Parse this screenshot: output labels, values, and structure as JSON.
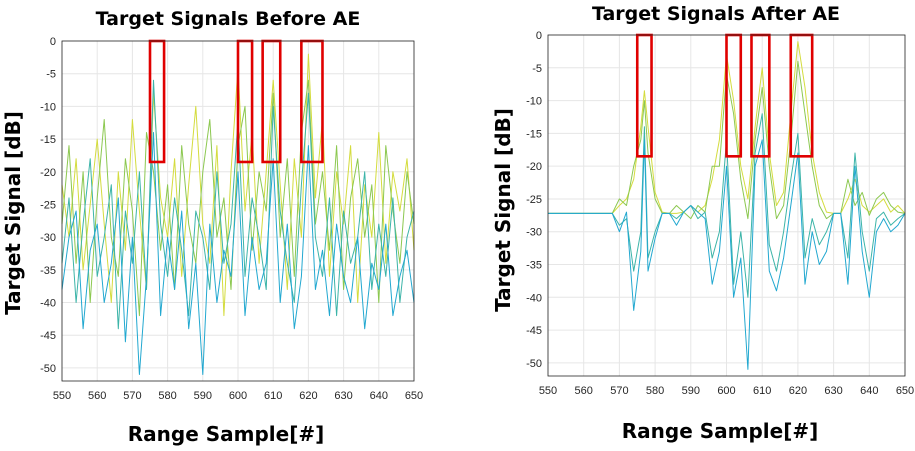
{
  "chart_data": [
    {
      "type": "line",
      "title": "Target Signals Before AE",
      "xlabel": "Range Sample[#]",
      "ylabel": "Target Signal [dB]",
      "xlim": [
        550,
        650
      ],
      "ylim": [
        -52,
        0
      ],
      "xticks": [
        "550",
        "560",
        "570",
        "580",
        "590",
        "600",
        "610",
        "620",
        "630",
        "640",
        "650"
      ],
      "yticks": [
        "0",
        "-5",
        "-10",
        "-15",
        "-20",
        "-25",
        "-30",
        "-35",
        "-40",
        "-45",
        "-50"
      ],
      "grid": true,
      "colors": [
        "#d4dc3e",
        "#8cc850",
        "#3cb4a8",
        "#22a8d0"
      ],
      "highlight_boxes": [
        {
          "x": [
            575,
            579
          ],
          "y": [
            -18.5,
            0
          ]
        },
        {
          "x": [
            600,
            604
          ],
          "y": [
            -18.5,
            0
          ]
        },
        {
          "x": [
            607,
            612
          ],
          "y": [
            -18.5,
            0
          ]
        },
        {
          "x": [
            618,
            624
          ],
          "y": [
            -18.5,
            0
          ]
        }
      ],
      "series": [
        {
          "x": [
            550,
            552,
            554,
            556,
            558,
            560,
            562,
            564,
            566,
            568,
            570,
            572,
            574,
            576,
            578,
            580,
            582,
            584,
            586,
            588,
            590,
            592,
            594,
            596,
            598,
            600,
            602,
            604,
            606,
            608,
            610,
            612,
            614,
            616,
            618,
            620,
            622,
            624,
            626,
            628,
            630,
            632,
            634,
            636,
            638,
            640,
            642,
            644,
            646,
            648,
            650
          ],
          "values": [
            -22,
            -30,
            -18,
            -35,
            -25,
            -15,
            -28,
            -40,
            -20,
            -32,
            -12,
            -26,
            -38,
            -8,
            -24,
            -30,
            -18,
            -36,
            -22,
            -10,
            -28,
            -34,
            -16,
            -42,
            -20,
            -4,
            -26,
            -14,
            -34,
            -20,
            -6,
            -22,
            -38,
            -18,
            -30,
            -2,
            -24,
            -12,
            -36,
            -20,
            -28,
            -16,
            -40,
            -22,
            -30,
            -14,
            -34,
            -20,
            -26,
            -18,
            -32
          ]
        },
        {
          "x": [
            550,
            552,
            554,
            556,
            558,
            560,
            562,
            564,
            566,
            568,
            570,
            572,
            574,
            576,
            578,
            580,
            582,
            584,
            586,
            588,
            590,
            592,
            594,
            596,
            598,
            600,
            602,
            604,
            606,
            608,
            610,
            612,
            614,
            616,
            618,
            620,
            622,
            624,
            626,
            628,
            630,
            632,
            634,
            636,
            638,
            640,
            642,
            644,
            646,
            648,
            650
          ],
          "values": [
            -28,
            -16,
            -34,
            -20,
            -40,
            -24,
            -12,
            -30,
            -36,
            -18,
            -26,
            -42,
            -14,
            -20,
            -32,
            -22,
            -38,
            -16,
            -28,
            -34,
            -20,
            -12,
            -30,
            -24,
            -38,
            -16,
            -10,
            -32,
            -20,
            -26,
            -8,
            -30,
            -18,
            -36,
            -14,
            -6,
            -28,
            -20,
            -32,
            -16,
            -38,
            -24,
            -18,
            -30,
            -22,
            -40,
            -16,
            -26,
            -34,
            -20,
            -28
          ]
        },
        {
          "x": [
            550,
            552,
            554,
            556,
            558,
            560,
            562,
            564,
            566,
            568,
            570,
            572,
            574,
            576,
            578,
            580,
            582,
            584,
            586,
            588,
            590,
            592,
            594,
            596,
            598,
            600,
            602,
            604,
            606,
            608,
            610,
            612,
            614,
            616,
            618,
            620,
            622,
            624,
            626,
            628,
            630,
            632,
            634,
            636,
            638,
            640,
            642,
            644,
            646,
            648,
            650
          ],
          "values": [
            -34,
            -24,
            -40,
            -28,
            -18,
            -36,
            -30,
            -22,
            -44,
            -26,
            -34,
            -20,
            -38,
            -6,
            -28,
            -36,
            -24,
            -32,
            -42,
            -26,
            -30,
            -38,
            -20,
            -34,
            -28,
            -12,
            -36,
            -24,
            -30,
            -38,
            -10,
            -26,
            -34,
            -40,
            -22,
            -8,
            -30,
            -36,
            -24,
            -42,
            -26,
            -34,
            -30,
            -20,
            -38,
            -28,
            -36,
            -24,
            -40,
            -30,
            -26
          ]
        },
        {
          "x": [
            550,
            552,
            554,
            556,
            558,
            560,
            562,
            564,
            566,
            568,
            570,
            572,
            574,
            576,
            578,
            580,
            582,
            584,
            586,
            588,
            590,
            592,
            594,
            596,
            598,
            600,
            602,
            604,
            606,
            608,
            610,
            612,
            614,
            616,
            618,
            620,
            622,
            624,
            626,
            628,
            630,
            632,
            634,
            636,
            638,
            640,
            642,
            644,
            646,
            648,
            650
          ],
          "values": [
            -38,
            -30,
            -26,
            -44,
            -32,
            -28,
            -40,
            -34,
            -24,
            -46,
            -30,
            -51,
            -36,
            -14,
            -42,
            -30,
            -38,
            -26,
            -44,
            -34,
            -51,
            -28,
            -40,
            -32,
            -36,
            -20,
            -42,
            -30,
            -38,
            -34,
            -18,
            -40,
            -28,
            -44,
            -36,
            -16,
            -38,
            -32,
            -42,
            -28,
            -36,
            -40,
            -30,
            -44,
            -34,
            -38,
            -28,
            -42,
            -36,
            -32,
            -40
          ]
        }
      ]
    },
    {
      "type": "line",
      "title": "Target Signals After AE",
      "xlabel": "Range Sample[#]",
      "ylabel": "Target Signal [dB]",
      "xlim": [
        550,
        650
      ],
      "ylim": [
        -52,
        0
      ],
      "xticks": [
        "550",
        "560",
        "570",
        "580",
        "590",
        "600",
        "610",
        "620",
        "630",
        "640",
        "650"
      ],
      "yticks": [
        "0",
        "-5",
        "-10",
        "-15",
        "-20",
        "-25",
        "-30",
        "-35",
        "-40",
        "-45",
        "-50"
      ],
      "grid": true,
      "colors": [
        "#d4dc3e",
        "#8cc850",
        "#3cb4a8",
        "#22a8d0"
      ],
      "highlight_boxes": [
        {
          "x": [
            575,
            579
          ],
          "y": [
            -18.5,
            0
          ]
        },
        {
          "x": [
            600,
            604
          ],
          "y": [
            -18.5,
            0
          ]
        },
        {
          "x": [
            607,
            612
          ],
          "y": [
            -18.5,
            0
          ]
        },
        {
          "x": [
            618,
            624
          ],
          "y": [
            -18.5,
            0
          ]
        }
      ],
      "series": [
        {
          "x": [
            550,
            560,
            568,
            570,
            572,
            574,
            576,
            577,
            578,
            580,
            582,
            584,
            586,
            588,
            590,
            592,
            594,
            596,
            598,
            600,
            602,
            604,
            606,
            608,
            610,
            612,
            614,
            616,
            618,
            620,
            622,
            624,
            626,
            628,
            630,
            632,
            634,
            636,
            638,
            640,
            642,
            644,
            646,
            648,
            650
          ],
          "values": [
            -27.2,
            -27.2,
            -27.2,
            -26,
            -25,
            -22,
            -14,
            -8.5,
            -14,
            -24,
            -27,
            -27.2,
            -27.2,
            -27,
            -26,
            -27,
            -26,
            -22,
            -16,
            -3,
            -10,
            -20,
            -25,
            -14,
            -5,
            -18,
            -26,
            -24,
            -12,
            -1,
            -8,
            -18,
            -24,
            -27,
            -27.2,
            -27.2,
            -25,
            -22,
            -26,
            -27,
            -26,
            -25,
            -27,
            -26,
            -27.2
          ]
        },
        {
          "x": [
            550,
            560,
            568,
            570,
            572,
            574,
            576,
            577,
            578,
            580,
            582,
            584,
            586,
            588,
            590,
            592,
            594,
            596,
            598,
            600,
            602,
            604,
            606,
            608,
            610,
            612,
            614,
            616,
            618,
            620,
            622,
            624,
            626,
            628,
            630,
            632,
            634,
            636,
            638,
            640,
            642,
            644,
            646,
            648,
            650
          ],
          "values": [
            -27.2,
            -27.2,
            -27.2,
            -25,
            -26,
            -20,
            -16,
            -10,
            -18,
            -25,
            -27.2,
            -27.2,
            -26,
            -27,
            -28,
            -26,
            -27,
            -20,
            -20,
            -6,
            -12,
            -22,
            -28,
            -16,
            -8,
            -20,
            -28,
            -26,
            -16,
            -4,
            -12,
            -20,
            -26,
            -28,
            -27.2,
            -27.2,
            -22,
            -26,
            -24,
            -27.5,
            -25,
            -24,
            -26,
            -27,
            -27.2
          ]
        },
        {
          "x": [
            550,
            560,
            568,
            570,
            572,
            574,
            576,
            577,
            578,
            580,
            582,
            584,
            586,
            588,
            590,
            592,
            594,
            596,
            598,
            600,
            602,
            604,
            606,
            608,
            610,
            612,
            614,
            616,
            618,
            620,
            622,
            624,
            626,
            628,
            630,
            632,
            634,
            636,
            638,
            640,
            642,
            644,
            646,
            648,
            650
          ],
          "values": [
            -27.2,
            -27.2,
            -27.2,
            -29,
            -28,
            -36,
            -30,
            -14,
            -34,
            -30,
            -27.2,
            -27.2,
            -28,
            -27,
            -26,
            -28,
            -27,
            -34,
            -30,
            -16,
            -38,
            -30,
            -40,
            -18,
            -12,
            -32,
            -36,
            -30,
            -22,
            -15,
            -34,
            -28,
            -32,
            -30,
            -27.2,
            -27.2,
            -34,
            -18,
            -30,
            -36,
            -28,
            -27,
            -29,
            -28,
            -27.2
          ]
        },
        {
          "x": [
            550,
            560,
            568,
            570,
            572,
            574,
            576,
            577,
            578,
            580,
            582,
            584,
            586,
            588,
            590,
            592,
            594,
            596,
            598,
            600,
            602,
            604,
            606,
            608,
            610,
            612,
            614,
            616,
            618,
            620,
            622,
            624,
            626,
            628,
            630,
            632,
            634,
            636,
            638,
            640,
            642,
            644,
            646,
            648,
            650
          ],
          "values": [
            -27.2,
            -27.2,
            -27.2,
            -30,
            -27,
            -42,
            -33,
            -16,
            -36,
            -31,
            -27.2,
            -27.2,
            -29,
            -27,
            -26,
            -27,
            -28,
            -38,
            -33,
            -20,
            -40,
            -34,
            -51,
            -20,
            -16,
            -36,
            -39,
            -34,
            -26,
            -18,
            -38,
            -30,
            -35,
            -33,
            -27.2,
            -27.2,
            -38,
            -20,
            -33,
            -40,
            -30,
            -28,
            -30,
            -29,
            -27.2
          ]
        }
      ]
    }
  ]
}
